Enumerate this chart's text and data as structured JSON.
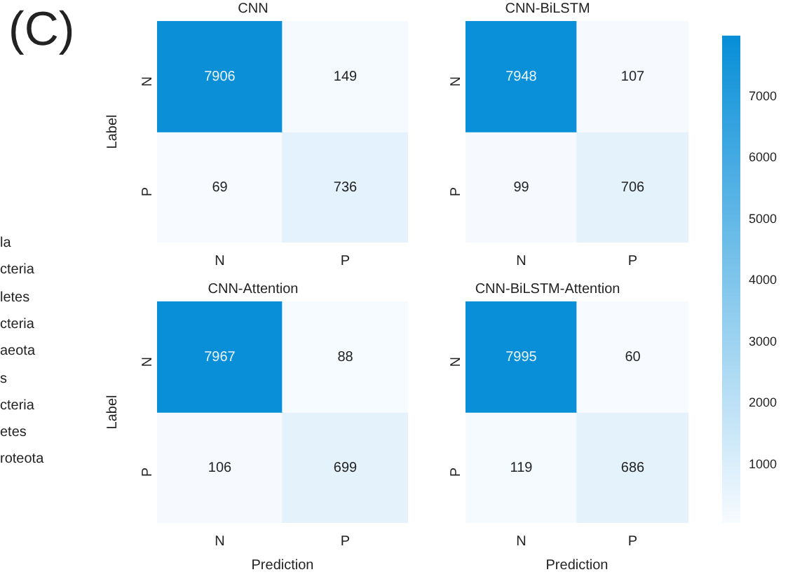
{
  "chart_data": [
    {
      "type": "heatmap",
      "title": "CNN",
      "ylabel": "Label",
      "categories": [
        "N",
        "P"
      ],
      "y_categories": [
        "N",
        "P"
      ],
      "cells": [
        [
          7906,
          149
        ],
        [
          69,
          736
        ]
      ],
      "data_labels": true,
      "annotations": [
        "(C)",
        "la",
        "cteria",
        "letes",
        "cteria",
        "aeota",
        "s",
        "cteria",
        "etes",
        "roteota"
      ]
    },
    {
      "type": "heatmap",
      "title": "CNN-BiLSTM",
      "categories": [
        "N",
        "P"
      ],
      "y_categories": [
        "N",
        "P"
      ],
      "cells": [
        [
          7948,
          107
        ],
        [
          99,
          706
        ]
      ],
      "data_labels": true
    },
    {
      "type": "heatmap",
      "title": "CNN-Attention",
      "xlabel": "Prediction",
      "ylabel": "Label",
      "categories": [
        "N",
        "P"
      ],
      "y_categories": [
        "N",
        "P"
      ],
      "cells": [
        [
          7967,
          88
        ],
        [
          106,
          699
        ]
      ],
      "data_labels": true
    },
    {
      "type": "heatmap",
      "title": "CNN-BiLSTM-Attention",
      "xlabel": "Prediction",
      "categories": [
        "N",
        "P"
      ],
      "y_categories": [
        "N",
        "P"
      ],
      "cells": [
        [
          7995,
          60
        ],
        [
          119,
          686
        ]
      ],
      "data_labels": true,
      "clim": [
        60,
        7995
      ],
      "cticks": [
        1000,
        2000,
        3000,
        4000,
        5000,
        6000,
        7000
      ]
    }
  ]
}
